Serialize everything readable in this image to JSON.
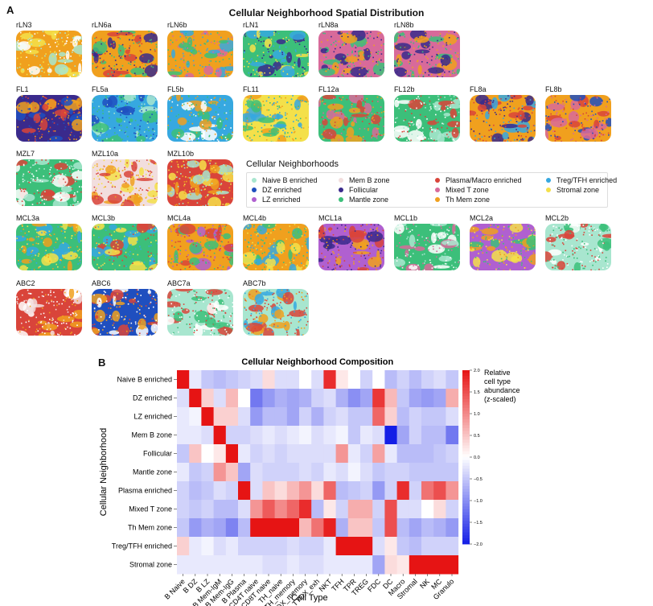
{
  "figure": {
    "panel_a_letter": "A",
    "panel_b_letter": "B",
    "panel_a_title": "Cellular Neighborhood Spatial Distribution",
    "legend_title": "Cellular Neighborhoods"
  },
  "colors": {
    "naive_b": "#a8e6cf",
    "dz": "#1f4fbf",
    "lz": "#b060d0",
    "mem_b": "#f2dede",
    "follicular": "#3a2a8c",
    "mantle": "#3cbf7a",
    "plasma": "#d9443a",
    "mixed_t": "#d86a9a",
    "th_mem": "#f0a01e",
    "treg": "#36a8e0",
    "stromal": "#f4e04a"
  },
  "legend": [
    {
      "label": "Naive B enriched",
      "color": "#a8e6cf"
    },
    {
      "label": "Mem B zone",
      "color": "#f2dede"
    },
    {
      "label": "Plasma/Macro enriched",
      "color": "#d9443a"
    },
    {
      "label": "Treg/TFH enriched",
      "color": "#36a8e0"
    },
    {
      "label": "DZ enriched",
      "color": "#1f4fbf"
    },
    {
      "label": "Follicular",
      "color": "#3a2a8c"
    },
    {
      "label": "Mixed T zone",
      "color": "#d86a9a"
    },
    {
      "label": "Stromal zone",
      "color": "#f4e04a"
    },
    {
      "label": "LZ enriched",
      "color": "#b060d0"
    },
    {
      "label": "Mantle zone",
      "color": "#3cbf7a"
    },
    {
      "label": "Th Mem zone",
      "color": "#f0a01e"
    }
  ],
  "tiles": [
    {
      "label": "rLN3",
      "base": "#f0a01e",
      "accent": [
        "#f4e04a",
        "#a8e6cf",
        "#ffffff"
      ]
    },
    {
      "label": "rLN6a",
      "base": "#f0a01e",
      "accent": [
        "#3a2a8c",
        "#3cbf7a",
        "#d9443a"
      ]
    },
    {
      "label": "rLN6b",
      "base": "#f0a01e",
      "accent": [
        "#36a8e0",
        "#3cbf7a",
        "#d86a9a"
      ]
    },
    {
      "label": "rLN1",
      "base": "#3cbf7a",
      "accent": [
        "#3a2a8c",
        "#f4e04a",
        "#36a8e0"
      ]
    },
    {
      "label": "rLN8a",
      "base": "#d86a9a",
      "accent": [
        "#3a2a8c",
        "#3cbf7a",
        "#f0a01e"
      ]
    },
    {
      "label": "rLN8b",
      "base": "#d86a9a",
      "accent": [
        "#3a2a8c",
        "#3cbf7a",
        "#f0a01e"
      ]
    },
    {
      "label": "FL1",
      "base": "#3a2a8c",
      "accent": [
        "#f0a01e",
        "#1f4fbf",
        "#d9443a"
      ]
    },
    {
      "label": "FL5a",
      "base": "#36a8e0",
      "accent": [
        "#3cbf7a",
        "#a8e6cf",
        "#1f4fbf"
      ]
    },
    {
      "label": "FL5b",
      "base": "#36a8e0",
      "accent": [
        "#ffffff",
        "#f0a01e",
        "#3cbf7a"
      ]
    },
    {
      "label": "FL11",
      "base": "#f4e04a",
      "accent": [
        "#3cbf7a",
        "#f0a01e",
        "#36a8e0"
      ]
    },
    {
      "label": "FL12a",
      "base": "#3cbf7a",
      "accent": [
        "#d9443a",
        "#f0a01e",
        "#d86a9a"
      ]
    },
    {
      "label": "FL12b",
      "base": "#3cbf7a",
      "accent": [
        "#a8e6cf",
        "#ffffff",
        "#d9443a"
      ]
    },
    {
      "label": "FL8a",
      "base": "#f0a01e",
      "accent": [
        "#d9443a",
        "#36a8e0",
        "#3a2a8c"
      ]
    },
    {
      "label": "FL8b",
      "base": "#f0a01e",
      "accent": [
        "#d9443a",
        "#d86a9a",
        "#1f4fbf"
      ]
    },
    {
      "label": "MZL7",
      "base": "#3cbf7a",
      "accent": [
        "#a8e6cf",
        "#d9443a",
        "#ffffff"
      ]
    },
    {
      "label": "MZL10a",
      "base": "#f2dede",
      "accent": [
        "#d9443a",
        "#f4e04a",
        "#f0a01e"
      ]
    },
    {
      "label": "MZL10b",
      "base": "#d9443a",
      "accent": [
        "#f0a01e",
        "#a8e6cf",
        "#f4e04a"
      ]
    },
    {
      "label": "MCL3a",
      "base": "#3cbf7a",
      "accent": [
        "#f0a01e",
        "#36a8e0",
        "#f4e04a"
      ]
    },
    {
      "label": "MCL3b",
      "base": "#3cbf7a",
      "accent": [
        "#36a8e0",
        "#f4e04a",
        "#d9443a"
      ]
    },
    {
      "label": "MCL4a",
      "base": "#f0a01e",
      "accent": [
        "#3cbf7a",
        "#b060d0",
        "#d9443a"
      ]
    },
    {
      "label": "MCL4b",
      "base": "#f0a01e",
      "accent": [
        "#36a8e0",
        "#f4e04a",
        "#3cbf7a"
      ]
    },
    {
      "label": "MCL1a",
      "base": "#b060d0",
      "accent": [
        "#d9443a",
        "#f0a01e",
        "#3a2a8c"
      ]
    },
    {
      "label": "MCL1b",
      "base": "#3cbf7a",
      "accent": [
        "#a8e6cf",
        "#d86a9a",
        "#ffffff"
      ]
    },
    {
      "label": "MCL2a",
      "base": "#b060d0",
      "accent": [
        "#f4e04a",
        "#3cbf7a",
        "#f0a01e"
      ]
    },
    {
      "label": "MCL2b",
      "base": "#a8e6cf",
      "accent": [
        "#ffffff",
        "#d9443a",
        "#3cbf7a"
      ]
    },
    {
      "label": "ABC2",
      "base": "#d9443a",
      "accent": [
        "#f2dede",
        "#ffffff",
        "#f0a01e"
      ]
    },
    {
      "label": "ABC6",
      "base": "#1f4fbf",
      "accent": [
        "#d9443a",
        "#ffffff",
        "#f0a01e"
      ]
    },
    {
      "label": "ABC7a",
      "base": "#a8e6cf",
      "accent": [
        "#d9443a",
        "#3cbf7a",
        "#ffffff"
      ]
    },
    {
      "label": "ABC7b",
      "base": "#a8e6cf",
      "accent": [
        "#d9443a",
        "#f0a01e",
        "#36a8e0"
      ]
    }
  ],
  "chart_data": {
    "type": "heatmap",
    "title": "Cellular Neighborhood Composition",
    "xlabel": "Cell Type",
    "ylabel": "Cellular Neighborhood",
    "rows": [
      "Naive B enriched",
      "DZ enriched",
      "LZ enriched",
      "Mem B zone",
      "Follicular",
      "Mantle zone",
      "Plasma enriched",
      "Mixed T zone",
      "Th Mem zone",
      "Treg/TFH enriched",
      "Stromal zone"
    ],
    "columns": [
      "B Naive",
      "B DZ",
      "B LZ",
      "B Mem-IgM",
      "B Mem-IgG",
      "B Plasma",
      "CD4T naive",
      "CD8T naive",
      "TH_naive",
      "TH_memory",
      "TTOX_memory",
      "TTOX_exh",
      "NKT",
      "TFH",
      "TPR",
      "TREG",
      "FDC",
      "DC",
      "Macro",
      "Stromal",
      "NK",
      "MC",
      "Granulo"
    ],
    "values": [
      [
        2.0,
        -0.2,
        -0.5,
        -0.6,
        -0.5,
        -0.4,
        -0.3,
        0.3,
        -0.3,
        -0.3,
        0.0,
        -0.3,
        1.8,
        0.2,
        0.0,
        -0.4,
        0.0,
        -0.6,
        -0.4,
        -0.6,
        -0.4,
        -0.3,
        -0.5
      ],
      [
        -0.3,
        2.0,
        0.4,
        -0.3,
        0.6,
        0.0,
        -1.2,
        -0.9,
        -0.7,
        -0.8,
        -0.7,
        -0.4,
        -0.3,
        -0.7,
        -1.0,
        -0.8,
        1.7,
        0.6,
        -0.5,
        -0.8,
        -0.9,
        -0.8,
        0.7
      ],
      [
        -0.2,
        -0.1,
        2.0,
        0.4,
        0.4,
        -0.3,
        -0.9,
        -0.6,
        -0.6,
        -0.8,
        -0.4,
        -0.7,
        -0.4,
        -0.3,
        -0.5,
        -0.5,
        1.3,
        0.4,
        -0.6,
        -0.4,
        -0.5,
        -0.5,
        -0.3
      ],
      [
        -0.2,
        -0.2,
        -0.3,
        2.0,
        -0.4,
        -0.4,
        -0.3,
        -0.2,
        -0.3,
        -0.2,
        -0.1,
        -0.3,
        -0.2,
        -0.1,
        -0.5,
        -0.2,
        -0.3,
        -2.0,
        -0.8,
        -0.4,
        -0.6,
        -0.6,
        -1.2
      ],
      [
        -0.5,
        0.5,
        0.0,
        0.2,
        2.0,
        -0.2,
        -0.4,
        -0.3,
        -0.4,
        -0.3,
        -0.3,
        -0.3,
        -0.3,
        0.9,
        -0.2,
        -0.4,
        0.8,
        -0.2,
        -0.6,
        -0.6,
        -0.6,
        -0.5,
        -0.4
      ],
      [
        -0.2,
        -0.5,
        -0.4,
        0.9,
        0.5,
        -0.8,
        -0.3,
        -0.4,
        -0.4,
        -0.4,
        -0.3,
        -0.4,
        -0.2,
        -0.3,
        -0.1,
        -0.3,
        -0.5,
        -0.4,
        -0.4,
        -0.5,
        -0.5,
        -0.5,
        -0.5
      ],
      [
        -0.4,
        -0.6,
        -0.5,
        -0.3,
        -0.4,
        2.0,
        -0.3,
        0.5,
        0.3,
        0.6,
        0.9,
        0.3,
        1.3,
        -0.6,
        -0.5,
        -0.4,
        -0.9,
        -0.4,
        1.8,
        -0.4,
        1.2,
        1.5,
        0.9
      ],
      [
        -0.4,
        -0.5,
        -0.4,
        -0.6,
        -0.6,
        -0.3,
        0.9,
        1.4,
        1.0,
        1.3,
        1.8,
        -0.6,
        0.2,
        -0.4,
        0.7,
        0.7,
        -0.4,
        1.5,
        -0.3,
        -0.3,
        0.0,
        0.3,
        -0.4
      ],
      [
        -0.5,
        -0.9,
        -0.7,
        -0.8,
        -1.1,
        -0.6,
        2.0,
        2.0,
        2.0,
        2.0,
        0.6,
        1.2,
        1.9,
        -0.7,
        0.5,
        0.5,
        -0.5,
        1.5,
        -0.6,
        -0.8,
        -0.6,
        -0.7,
        -0.9
      ],
      [
        0.4,
        -0.2,
        -0.1,
        -0.3,
        -0.2,
        -0.4,
        -0.4,
        -0.4,
        -0.4,
        -0.3,
        -0.4,
        -0.4,
        -0.2,
        2.0,
        2.0,
        2.0,
        -0.3,
        0.2,
        -0.5,
        -0.6,
        -0.4,
        -0.4,
        -0.4
      ],
      [
        -0.2,
        -0.2,
        -0.2,
        -0.2,
        -0.2,
        -0.2,
        -0.2,
        -0.3,
        -0.3,
        -0.2,
        -0.3,
        -0.3,
        -0.2,
        -0.2,
        -0.2,
        -0.2,
        -0.8,
        0.3,
        0.2,
        2.0,
        2.0,
        2.0,
        2.0
      ]
    ],
    "vmin": -2.0,
    "vmax": 2.0,
    "colorbar_label_lines": [
      "Relative",
      "cell type",
      "abundance",
      "(z-scaled)"
    ],
    "colorbar_ticks": [
      "2.0",
      "1.5",
      "1.0",
      "0.5",
      "0.0",
      "−0.5",
      "−1.0",
      "−1.5",
      "−2.0"
    ]
  }
}
